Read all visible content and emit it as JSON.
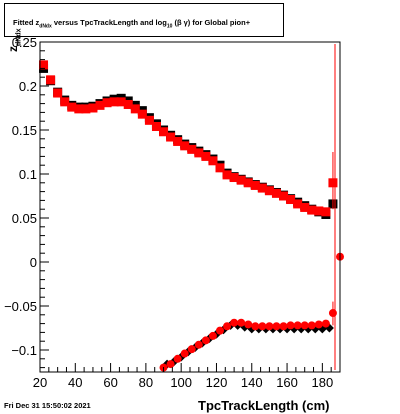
{
  "title": {
    "prefix": "Fitted",
    "z": "z",
    "z_sub": "dNdx",
    "middle": "versus TpcTrackLength and log",
    "log_sub": "10",
    "beta_gamma": "(β  γ)",
    "suffix": "for Global pion+"
  },
  "footer": "Fri Dec 31 15:50:02 2021",
  "colors": {
    "series_black": "#000000",
    "series_red": "#ff0000",
    "axis": "#000000"
  },
  "chart_data": {
    "type": "scatter",
    "xlabel": "TpcTrackLength (cm)",
    "ylabel": "z",
    "ylabel_sub": "dNdx",
    "xlim": [
      20,
      190
    ],
    "ylim": [
      -0.125,
      0.25
    ],
    "xticks": [
      20,
      40,
      60,
      80,
      100,
      120,
      140,
      160,
      180
    ],
    "yticks": [
      -0.1,
      -0.05,
      0,
      0.05,
      0.1,
      0.15,
      0.2,
      0.25
    ],
    "ytick_labels": [
      "−0.1",
      "−0.05",
      "0",
      "0.05",
      "0.1",
      "0.15",
      "0.2",
      "0.25"
    ],
    "series": [
      {
        "marker": "square",
        "color": "#000000",
        "x": [
          22,
          26,
          30,
          34,
          38,
          42,
          46,
          50,
          54,
          58,
          62,
          66,
          70,
          74,
          78,
          82,
          86,
          90,
          94,
          98,
          102,
          106,
          110,
          114,
          118,
          122,
          126,
          130,
          134,
          138,
          142,
          146,
          150,
          154,
          158,
          162,
          166,
          170,
          174,
          178,
          182,
          186
        ],
        "y": [
          0.22,
          0.206,
          0.193,
          0.184,
          0.178,
          0.176,
          0.176,
          0.177,
          0.18,
          0.183,
          0.185,
          0.186,
          0.183,
          0.178,
          0.172,
          0.164,
          0.157,
          0.15,
          0.144,
          0.139,
          0.134,
          0.13,
          0.126,
          0.122,
          0.117,
          0.11,
          0.101,
          0.097,
          0.094,
          0.091,
          0.088,
          0.085,
          0.082,
          0.079,
          0.076,
          0.072,
          0.068,
          0.064,
          0.06,
          0.057,
          0.054,
          0.066
        ]
      },
      {
        "marker": "square",
        "color": "#ff0000",
        "x": [
          22,
          26,
          30,
          34,
          38,
          42,
          46,
          50,
          54,
          58,
          62,
          66,
          70,
          74,
          78,
          82,
          86,
          90,
          94,
          98,
          102,
          106,
          110,
          114,
          118,
          122,
          126,
          130,
          134,
          138,
          142,
          146,
          150,
          154,
          158,
          162,
          166,
          170,
          174,
          178,
          182,
          186
        ],
        "y": [
          0.224,
          0.207,
          0.192,
          0.182,
          0.176,
          0.174,
          0.174,
          0.175,
          0.178,
          0.181,
          0.182,
          0.182,
          0.179,
          0.174,
          0.168,
          0.161,
          0.154,
          0.148,
          0.142,
          0.137,
          0.132,
          0.128,
          0.124,
          0.12,
          0.115,
          0.107,
          0.099,
          0.096,
          0.093,
          0.09,
          0.087,
          0.084,
          0.081,
          0.078,
          0.075,
          0.071,
          0.066,
          0.062,
          0.059,
          0.058,
          0.057,
          0.09
        ]
      },
      {
        "marker": "diamond",
        "color": "#000000",
        "x": [
          92,
          96,
          100,
          104,
          108,
          112,
          116,
          120,
          124,
          128,
          132,
          136,
          140,
          144,
          148,
          152,
          156,
          160,
          164,
          168,
          172,
          176,
          180,
          184
        ],
        "y": [
          -0.116,
          -0.113,
          -0.108,
          -0.102,
          -0.097,
          -0.092,
          -0.087,
          -0.082,
          -0.077,
          -0.072,
          -0.072,
          -0.074,
          -0.076,
          -0.076,
          -0.076,
          -0.076,
          -0.076,
          -0.076,
          -0.076,
          -0.076,
          -0.076,
          -0.076,
          -0.076,
          -0.075
        ]
      },
      {
        "marker": "circle",
        "color": "#ff0000",
        "x": [
          90,
          94,
          98,
          102,
          106,
          110,
          114,
          118,
          122,
          126,
          130,
          134,
          138,
          142,
          146,
          150,
          154,
          158,
          162,
          166,
          170,
          174,
          178,
          182,
          186,
          190
        ],
        "y": [
          -0.12,
          -0.116,
          -0.11,
          -0.104,
          -0.099,
          -0.094,
          -0.089,
          -0.084,
          -0.078,
          -0.073,
          -0.069,
          -0.069,
          -0.071,
          -0.073,
          -0.073,
          -0.073,
          -0.073,
          -0.073,
          -0.072,
          -0.072,
          -0.072,
          -0.072,
          -0.071,
          -0.07,
          -0.058,
          0.006
        ]
      }
    ]
  }
}
